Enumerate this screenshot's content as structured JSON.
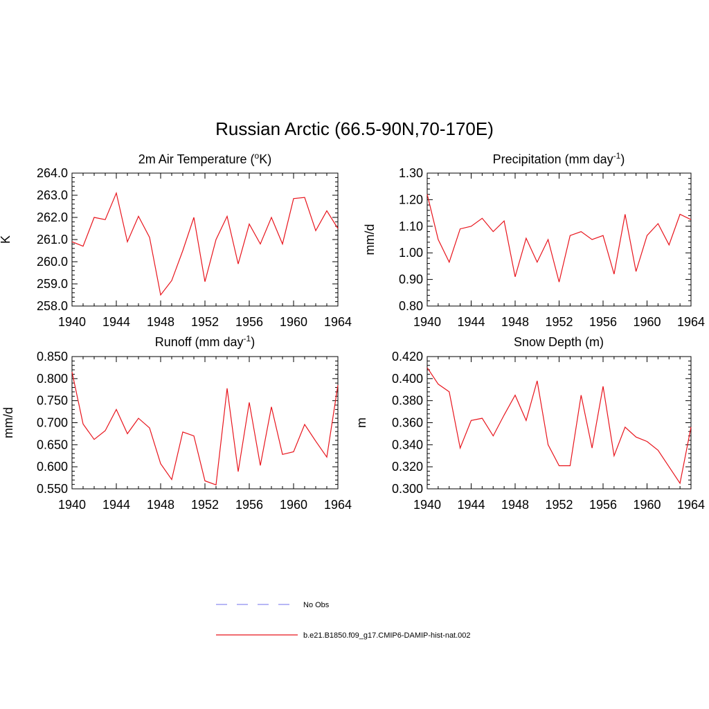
{
  "figure": {
    "title": "Russian Arctic (66.5-90N,70-170E)"
  },
  "chart_data": [
    {
      "type": "line",
      "title_main": "2m Air Temperature (",
      "title_sup": "o",
      "title_end": "K)",
      "ylabel": "K",
      "ylim": [
        258.0,
        264.0
      ],
      "yticks": [
        "258.0",
        "259.0",
        "260.0",
        "261.0",
        "262.0",
        "263.0",
        "264.0"
      ],
      "xlim": [
        1940,
        1964
      ],
      "xticks": [
        "1940",
        "1944",
        "1948",
        "1952",
        "1956",
        "1960",
        "1964"
      ],
      "series": [
        {
          "name": "b.e21.B1850.f09_g17.CMIP6-DAMIP-hist-nat.002",
          "color": "#e8141c",
          "x": [
            1940,
            1941,
            1942,
            1943,
            1944,
            1945,
            1946,
            1947,
            1948,
            1949,
            1950,
            1951,
            1952,
            1953,
            1954,
            1955,
            1956,
            1957,
            1958,
            1959,
            1960,
            1961,
            1962,
            1963,
            1964
          ],
          "values": [
            260.9,
            260.7,
            262.0,
            261.9,
            263.1,
            260.9,
            262.05,
            261.1,
            258.5,
            259.15,
            260.5,
            262.0,
            259.1,
            261.0,
            262.05,
            259.9,
            261.7,
            260.8,
            262.0,
            260.8,
            262.85,
            262.9,
            261.4,
            262.3,
            261.5
          ]
        }
      ]
    },
    {
      "type": "line",
      "title_main": "Precipitation (mm day",
      "title_sup": "-1",
      "title_end": ")",
      "ylabel": "mm/d",
      "ylim": [
        0.8,
        1.3
      ],
      "yticks": [
        "0.80",
        "0.90",
        "1.00",
        "1.10",
        "1.20",
        "1.30"
      ],
      "xlim": [
        1940,
        1964
      ],
      "xticks": [
        "1940",
        "1944",
        "1948",
        "1952",
        "1956",
        "1960",
        "1964"
      ],
      "series": [
        {
          "name": "b.e21.B1850.f09_g17.CMIP6-DAMIP-hist-nat.002",
          "color": "#e8141c",
          "x": [
            1940,
            1941,
            1942,
            1943,
            1944,
            1945,
            1946,
            1947,
            1948,
            1949,
            1950,
            1951,
            1952,
            1953,
            1954,
            1955,
            1956,
            1957,
            1958,
            1959,
            1960,
            1961,
            1962,
            1963,
            1964
          ],
          "values": [
            1.22,
            1.05,
            0.965,
            1.09,
            1.1,
            1.13,
            1.08,
            1.12,
            0.91,
            1.055,
            0.965,
            1.05,
            0.89,
            1.065,
            1.08,
            1.05,
            1.065,
            0.92,
            1.145,
            0.93,
            1.065,
            1.11,
            1.03,
            1.145,
            1.125
          ]
        }
      ]
    },
    {
      "type": "line",
      "title_main": "Runoff (mm day",
      "title_sup": "-1",
      "title_end": ")",
      "ylabel": "mm/d",
      "ylim": [
        0.55,
        0.85
      ],
      "yticks": [
        "0.550",
        "0.600",
        "0.650",
        "0.700",
        "0.750",
        "0.800",
        "0.850"
      ],
      "xlim": [
        1940,
        1964
      ],
      "xticks": [
        "1940",
        "1944",
        "1948",
        "1952",
        "1956",
        "1960",
        "1964"
      ],
      "series": [
        {
          "name": "b.e21.B1850.f09_g17.CMIP6-DAMIP-hist-nat.002",
          "color": "#e8141c",
          "x": [
            1940,
            1941,
            1942,
            1943,
            1944,
            1945,
            1946,
            1947,
            1948,
            1949,
            1950,
            1951,
            1952,
            1953,
            1954,
            1955,
            1956,
            1957,
            1958,
            1959,
            1960,
            1961,
            1962,
            1963,
            1964
          ],
          "values": [
            0.815,
            0.697,
            0.662,
            0.682,
            0.73,
            0.675,
            0.71,
            0.688,
            0.607,
            0.571,
            0.679,
            0.67,
            0.568,
            0.559,
            0.778,
            0.589,
            0.746,
            0.603,
            0.736,
            0.628,
            0.634,
            0.696,
            0.658,
            0.622,
            0.785
          ]
        }
      ]
    },
    {
      "type": "line",
      "title_main": "Snow Depth (m)",
      "title_sup": "",
      "title_end": "",
      "ylabel": "m",
      "ylim": [
        0.3,
        0.42
      ],
      "yticks": [
        "0.300",
        "0.320",
        "0.340",
        "0.360",
        "0.380",
        "0.400",
        "0.420"
      ],
      "xlim": [
        1940,
        1964
      ],
      "xticks": [
        "1940",
        "1944",
        "1948",
        "1952",
        "1956",
        "1960",
        "1964"
      ],
      "series": [
        {
          "name": "b.e21.B1850.f09_g17.CMIP6-DAMIP-hist-nat.002",
          "color": "#e8141c",
          "x": [
            1940,
            1941,
            1942,
            1943,
            1944,
            1945,
            1946,
            1947,
            1948,
            1949,
            1950,
            1951,
            1952,
            1953,
            1954,
            1955,
            1956,
            1957,
            1958,
            1959,
            1960,
            1961,
            1962,
            1963,
            1964
          ],
          "values": [
            0.41,
            0.395,
            0.388,
            0.337,
            0.362,
            0.364,
            0.348,
            0.367,
            0.385,
            0.362,
            0.398,
            0.34,
            0.321,
            0.321,
            0.385,
            0.337,
            0.393,
            0.33,
            0.356,
            0.347,
            0.343,
            0.335,
            0.32,
            0.305,
            0.356
          ]
        }
      ]
    }
  ],
  "legend": {
    "items": [
      {
        "label": "No Obs",
        "color": "#8c8cf0",
        "style": "dashed"
      },
      {
        "label": "b.e21.B1850.f09_g17.CMIP6-DAMIP-hist-nat.002",
        "color": "#e8141c",
        "style": "solid"
      }
    ]
  }
}
